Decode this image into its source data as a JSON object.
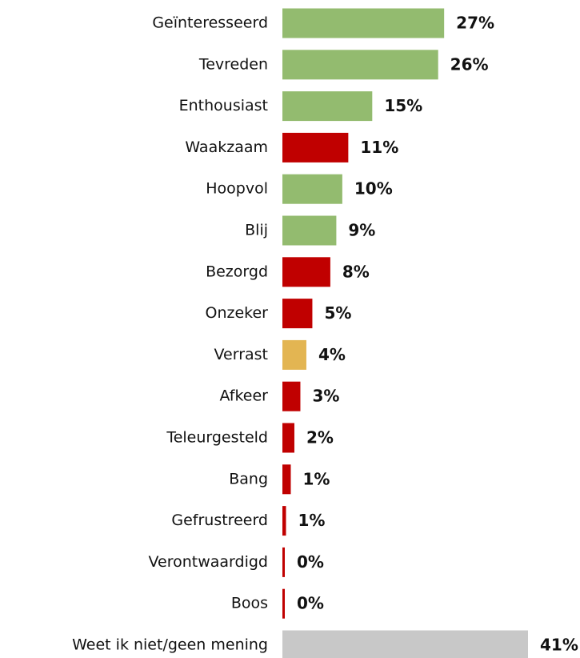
{
  "chart_data": {
    "type": "bar",
    "orientation": "horizontal",
    "categories": [
      "Geïnteresseerd",
      "Tevreden",
      "Enthousiast",
      "Waakzaam",
      "Hoopvol",
      "Blij",
      "Bezorgd",
      "Onzeker",
      "Verrast",
      "Afkeer",
      "Teleurgesteld",
      "Bang",
      "Gefrustreerd",
      "Verontwaardigd",
      "Boos",
      "Weet ik niet/geen mening"
    ],
    "values": [
      27,
      26,
      15,
      11,
      10,
      9,
      8,
      5,
      4,
      3,
      2,
      1.4,
      0.6,
      0.4,
      0.4,
      41
    ],
    "value_labels": [
      "27%",
      "26%",
      "15%",
      "11%",
      "10%",
      "9%",
      "8%",
      "5%",
      "4%",
      "3%",
      "2%",
      "1%",
      "1%",
      "0%",
      "0%",
      "41%"
    ],
    "colors": [
      "#93bb6f",
      "#93bb6f",
      "#93bb6f",
      "#c00000",
      "#93bb6f",
      "#93bb6f",
      "#c00000",
      "#c00000",
      "#e3b552",
      "#c00000",
      "#c00000",
      "#c00000",
      "#c00000",
      "#c00000",
      "#c00000",
      "#c8c8c8"
    ]
  }
}
